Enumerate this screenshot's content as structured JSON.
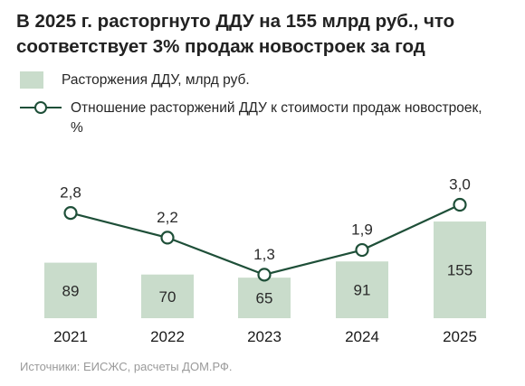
{
  "title": "В 2025 г. расторгнуто ДДУ на 155 млрд руб., что соответствует 3% продаж новостроек за год",
  "legend": {
    "bar": "Расторжения ДДУ, млрд руб.",
    "line": "Отношение расторжений ДДУ к стоимости продаж новостроек, %"
  },
  "source": "Источники: ЕИСЖС, расчеты ДОМ.РФ.",
  "colors": {
    "bar": "#c9dccb",
    "line": "#1e4f38",
    "text": "#222222",
    "year": "#1a1a1a",
    "muted": "#9a9a9a"
  },
  "chart_data": {
    "type": "bar+line",
    "categories": [
      "2021",
      "2022",
      "2023",
      "2024",
      "2025"
    ],
    "series": [
      {
        "name": "Расторжения ДДУ, млрд руб.",
        "type": "bar",
        "values": [
          89,
          70,
          65,
          91,
          155
        ],
        "labels": [
          "89",
          "70",
          "65",
          "91",
          "155"
        ]
      },
      {
        "name": "Отношение расторжений ДДУ к стоимости продаж новостроек, %",
        "type": "line",
        "values": [
          2.8,
          2.2,
          1.3,
          1.9,
          3.0
        ],
        "labels": [
          "2,8",
          "2,2",
          "1,3",
          "1,9",
          "3,0"
        ]
      }
    ],
    "grid": false,
    "legend_position": "top-left"
  }
}
